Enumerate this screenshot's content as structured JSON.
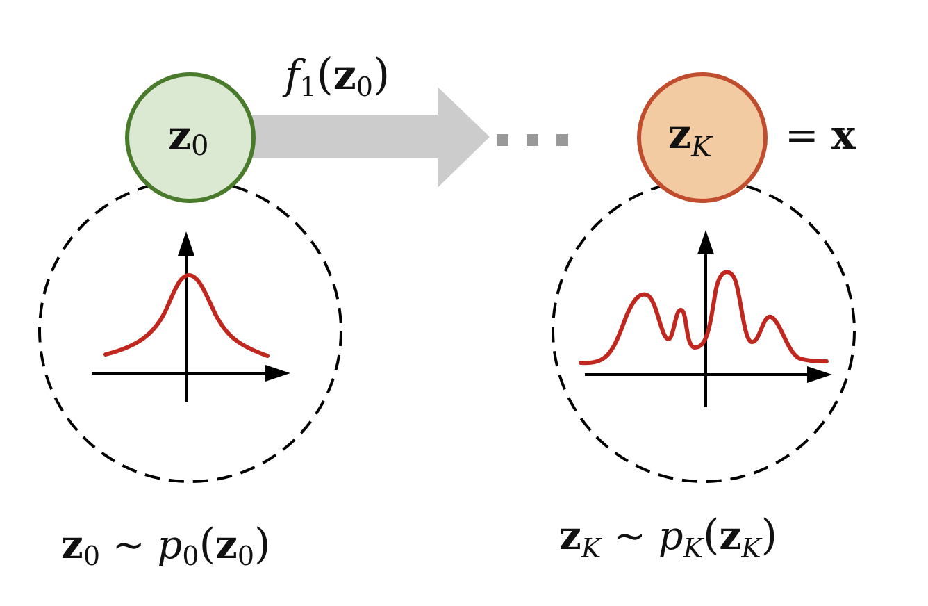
{
  "colors": {
    "start_node_fill": "#dbe9d2",
    "start_node_stroke": "#4a7a2c",
    "end_node_fill": "#f2cba3",
    "end_node_stroke": "#c14d2f",
    "arrow_fill": "#cccccc",
    "ellipsis": "#999999",
    "density_curve": "#c0281f",
    "axes": "#000000",
    "dashed_circle": "#000000"
  },
  "start_node": {
    "var": "z",
    "sub": "0"
  },
  "end_node": {
    "var": "z",
    "sub": "K",
    "eq": "= ",
    "rhs": "x"
  },
  "flow_label": {
    "fn": "f",
    "fn_sub": "1",
    "open": "(",
    "var": "z",
    "sub": "0",
    "close": ")"
  },
  "start_caption": {
    "var": "z",
    "sub": "0",
    "sim": " ∼ ",
    "p": "p",
    "p_sub": "0",
    "open": "(",
    "arg": "z",
    "arg_sub": "0",
    "close": ")"
  },
  "end_caption": {
    "var": "z",
    "sub": "K",
    "sim": " ∼ ",
    "p": "p",
    "p_sub": "K",
    "open": "(",
    "arg": "z",
    "arg_sub": "K",
    "close": ")"
  },
  "icons": {
    "arrow": "block-arrow-right",
    "ellipsis": "ellipsis-squares",
    "left_plot": "gaussian-density-plot",
    "right_plot": "multimodal-density-plot"
  }
}
